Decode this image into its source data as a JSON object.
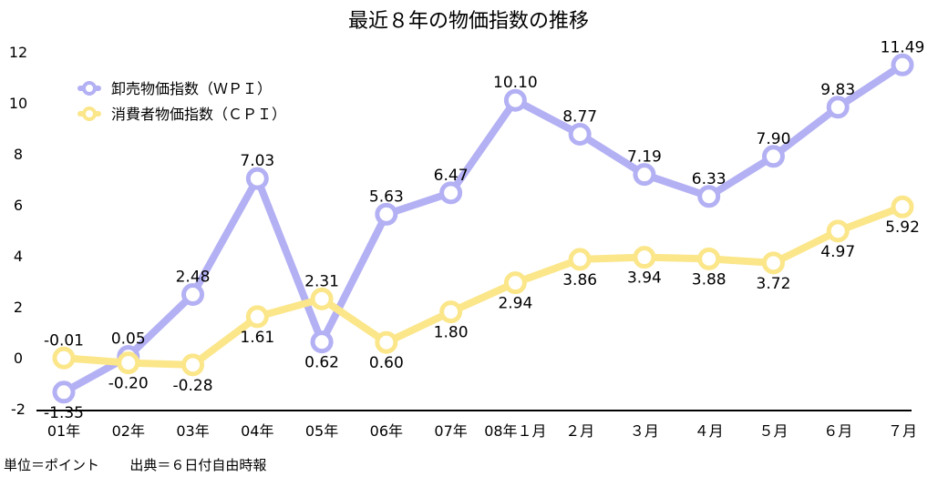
{
  "chart_data": {
    "type": "line",
    "title": "最近８年の物価指数の推移",
    "categories": [
      "01年",
      "02年",
      "03年",
      "04年",
      "05年",
      "06年",
      "07年",
      "08年１月",
      "２月",
      "３月",
      "４月",
      "５月",
      "６月",
      "７月"
    ],
    "series": [
      {
        "name": "卸売物価指数（ＷＰＩ）",
        "color": "#b3b0f4",
        "values": [
          -1.35,
          0.05,
          2.48,
          7.03,
          0.62,
          5.63,
          6.47,
          10.1,
          8.77,
          7.19,
          6.33,
          7.9,
          9.83,
          11.49
        ],
        "labels": [
          "-1.35",
          "0.05",
          "2.48",
          "7.03",
          "0.62",
          "5.63",
          "6.47",
          "10.10",
          "8.77",
          "7.19",
          "6.33",
          "7.90",
          "9.83",
          "11.49"
        ]
      },
      {
        "name": "消費者物価指数（ＣＰＩ）",
        "color": "#fbe68a",
        "values": [
          -0.01,
          -0.2,
          -0.28,
          1.61,
          2.31,
          0.6,
          1.8,
          2.94,
          3.86,
          3.94,
          3.88,
          3.72,
          4.97,
          5.92
        ],
        "labels": [
          "-0.01",
          "-0.20",
          "-0.28",
          "1.61",
          "2.31",
          "0.60",
          "1.80",
          "2.94",
          "3.86",
          "3.94",
          "3.88",
          "3.72",
          "4.97",
          "5.92"
        ]
      }
    ],
    "ylim": [
      -2,
      12
    ],
    "yticks": [
      -2,
      0,
      2,
      4,
      6,
      8,
      10,
      12
    ],
    "grid": false,
    "legend": "top-left"
  },
  "footer": {
    "unit_note": "単位＝ポイント",
    "source_note": "出典＝６日付自由時報"
  }
}
